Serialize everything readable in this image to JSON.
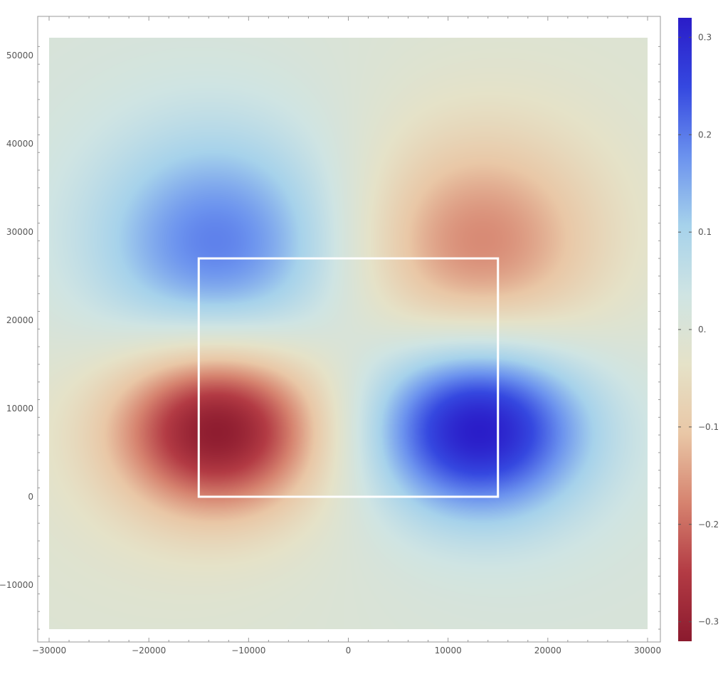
{
  "chart_data": {
    "type": "heatmap",
    "title": "",
    "xlabel": "",
    "ylabel": "",
    "xlim": [
      -30000,
      30000
    ],
    "ylim": [
      -15000,
      52000
    ],
    "x_ticks": [
      -30000,
      -20000,
      -10000,
      0,
      10000,
      20000,
      30000
    ],
    "x_tick_labels": [
      "−30000",
      "−20000",
      "−10000",
      "0",
      "10000",
      "20000",
      "30000"
    ],
    "y_ticks": [
      -10000,
      0,
      10000,
      20000,
      30000,
      40000,
      50000
    ],
    "y_tick_labels": [
      "−10000",
      "0",
      "10000",
      "20000",
      "30000",
      "40000",
      "50000"
    ],
    "colorbar": {
      "range": [
        -0.32,
        0.32
      ],
      "ticks": [
        -0.3,
        -0.2,
        -0.1,
        0,
        0.1,
        0.2,
        0.3
      ],
      "tick_labels": [
        "−0.3",
        "−0.2",
        "−0.1",
        "0.",
        "0.1",
        "0.2",
        "0.3"
      ],
      "colors": [
        "#8b1a2e",
        "#b33b44",
        "#d6836f",
        "#e9c7a6",
        "#e5e2c8",
        "#cfe4e3",
        "#a6d2eb",
        "#6b92ee",
        "#3548e0",
        "#2a1cc8"
      ]
    },
    "field_extrema": [
      {
        "x": -13000,
        "y": 8000,
        "value": -0.32
      },
      {
        "x": 13000,
        "y": 8000,
        "value": 0.32
      },
      {
        "x": -13000,
        "y": 28000,
        "value": 0.2
      },
      {
        "x": 13000,
        "y": 28000,
        "value": -0.18
      }
    ],
    "overlay_rectangle": {
      "x_range": [
        -15000,
        15000
      ],
      "y_range": [
        0,
        27000
      ],
      "color": "#ffffff"
    }
  }
}
